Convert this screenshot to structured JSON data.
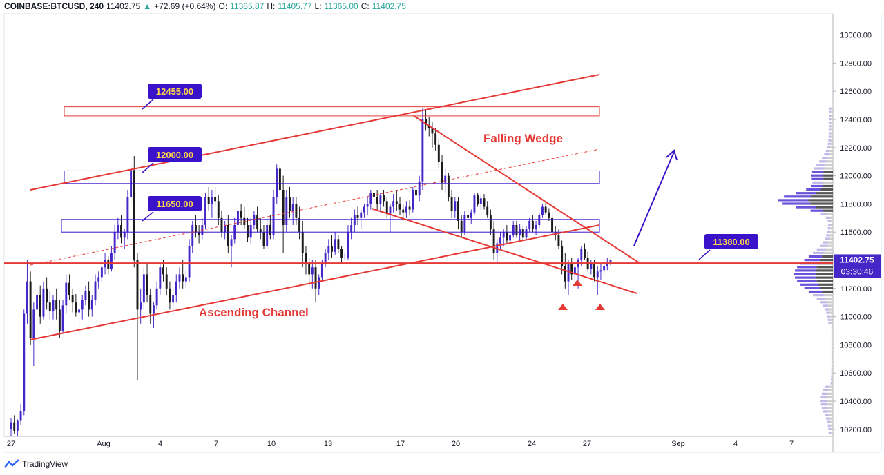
{
  "header": {
    "symbol": "COINBASE:BTCUSD, 240",
    "last": "11402.75",
    "arrow": "▲",
    "change": "+72.69 (+0.64%)",
    "o_label": "O:",
    "o_value": "11385.87",
    "h_label": "H:",
    "h_value": "11405.77",
    "l_label": "L:",
    "l_value": "11365.00",
    "c_label": "C:",
    "c_value": "11402.75"
  },
  "footer": {
    "brand": "TradingView",
    "logo_icon": "tradingview-logo-icon"
  },
  "colors": {
    "up": "#4527c8",
    "down": "#1b1b1b",
    "trend": "#e53935",
    "callout": "#3a12c9",
    "callout_text": "#ffd54a",
    "zone_red": "#e53935",
    "zone_blue": "#3a12c9"
  },
  "chart_data": {
    "type": "candlestick",
    "symbol": "COINBASE:BTCUSD",
    "timeframe": "240",
    "y_axis": {
      "range": [
        10150,
        13150
      ],
      "ticks": [
        "13000.00",
        "12800.00",
        "12600.00",
        "12400.00",
        "12200.00",
        "12000.00",
        "11800.00",
        "11600.00",
        "11400.00",
        "11200.00",
        "11000.00",
        "10800.00",
        "10600.00",
        "10400.00",
        "10200.00"
      ]
    },
    "x_axis": {
      "ticks": [
        "27",
        "Aug",
        "4",
        "7",
        "10",
        "13",
        "17",
        "20",
        "24",
        "27",
        "Sep",
        "4",
        "7"
      ]
    },
    "price_label": "11402.75",
    "countdown_label": "03:30:46",
    "ohlc_last": {
      "open": 11385.87,
      "high": 11405.77,
      "low": 11365.0,
      "close": 11402.75
    },
    "annotations": {
      "titles": [
        "Falling Wedge",
        "Ascending Channel"
      ],
      "callouts": [
        "12455.00",
        "12000.00",
        "11650.00",
        "11380.00"
      ],
      "support_level": 11380,
      "zones": [
        {
          "label": "12455.00",
          "low": 12425,
          "high": 12490
        },
        {
          "label": "12000.00",
          "low": 11945,
          "high": 12035
        },
        {
          "label": "11650.00",
          "low": 11600,
          "high": 11690
        }
      ]
    },
    "candles": [
      [
        10200,
        10280,
        10150,
        10250
      ],
      [
        10250,
        10300,
        10170,
        10190
      ],
      [
        10190,
        10270,
        10150,
        10260
      ],
      [
        10260,
        10380,
        10230,
        10330
      ],
      [
        10330,
        11050,
        10300,
        11020
      ],
      [
        11020,
        11400,
        10950,
        11250
      ],
      [
        11250,
        11320,
        10800,
        10850
      ],
      [
        10850,
        11100,
        10650,
        11050
      ],
      [
        11050,
        11200,
        10980,
        11150
      ],
      [
        11150,
        11220,
        10950,
        11000
      ],
      [
        11000,
        11250,
        10980,
        11200
      ],
      [
        11200,
        11280,
        11050,
        11100
      ],
      [
        11100,
        11180,
        10980,
        11040
      ],
      [
        11040,
        11150,
        10980,
        11120
      ],
      [
        11120,
        11200,
        10980,
        11050
      ],
      [
        11050,
        11120,
        10850,
        10900
      ],
      [
        10900,
        11120,
        10880,
        11080
      ],
      [
        11080,
        11300,
        11020,
        11240
      ],
      [
        11240,
        11300,
        11120,
        11150
      ],
      [
        11150,
        11200,
        11030,
        11100
      ],
      [
        11100,
        11160,
        11000,
        11030
      ],
      [
        11030,
        11100,
        10920,
        11050
      ],
      [
        11050,
        11150,
        10980,
        11120
      ],
      [
        11120,
        11220,
        11080,
        11180
      ],
      [
        11180,
        11250,
        11000,
        11050
      ],
      [
        11050,
        11150,
        11000,
        11120
      ],
      [
        11120,
        11300,
        11080,
        11250
      ],
      [
        11250,
        11320,
        11200,
        11280
      ],
      [
        11280,
        11400,
        11240,
        11350
      ],
      [
        11350,
        11450,
        11300,
        11400
      ],
      [
        11400,
        11430,
        11300,
        11340
      ],
      [
        11340,
        11500,
        11320,
        11450
      ],
      [
        11450,
        11650,
        11400,
        11600
      ],
      [
        11600,
        11700,
        11550,
        11650
      ],
      [
        11650,
        11720,
        11520,
        11560
      ],
      [
        11560,
        11620,
        11480,
        11600
      ],
      [
        11600,
        11900,
        11550,
        11850
      ],
      [
        11850,
        12080,
        11800,
        12040
      ],
      [
        12040,
        12140,
        11350,
        11400
      ],
      [
        11400,
        11450,
        10550,
        11050
      ],
      [
        11050,
        11200,
        10950,
        11100
      ],
      [
        11100,
        11350,
        11050,
        11300
      ],
      [
        11300,
        11380,
        11100,
        11150
      ],
      [
        11150,
        11200,
        10950,
        11020
      ],
      [
        11020,
        11100,
        10920,
        11080
      ],
      [
        11080,
        11250,
        11050,
        11200
      ],
      [
        11200,
        11380,
        11150,
        11350
      ],
      [
        11350,
        11400,
        11250,
        11300
      ],
      [
        11300,
        11350,
        11150,
        11200
      ],
      [
        11200,
        11250,
        11050,
        11100
      ],
      [
        11100,
        11200,
        11000,
        11150
      ],
      [
        11150,
        11300,
        11100,
        11250
      ],
      [
        11250,
        11350,
        11200,
        11300
      ],
      [
        11300,
        11400,
        11200,
        11250
      ],
      [
        11250,
        11330,
        11200,
        11280
      ],
      [
        11280,
        11550,
        11250,
        11500
      ],
      [
        11500,
        11680,
        11450,
        11650
      ],
      [
        11650,
        11720,
        11560,
        11600
      ],
      [
        11600,
        11650,
        11520,
        11580
      ],
      [
        11580,
        11700,
        11550,
        11650
      ],
      [
        11650,
        11880,
        11620,
        11850
      ],
      [
        11850,
        11920,
        11750,
        11800
      ],
      [
        11800,
        11900,
        11700,
        11850
      ],
      [
        11850,
        11920,
        11780,
        11820
      ],
      [
        11820,
        11860,
        11650,
        11700
      ],
      [
        11700,
        11750,
        11560,
        11600
      ],
      [
        11600,
        11680,
        11550,
        11650
      ],
      [
        11650,
        11720,
        11450,
        11500
      ],
      [
        11500,
        11580,
        11350,
        11550
      ],
      [
        11550,
        11700,
        11520,
        11650
      ],
      [
        11650,
        11780,
        11600,
        11750
      ],
      [
        11750,
        11800,
        11650,
        11700
      ],
      [
        11700,
        11780,
        11620,
        11650
      ],
      [
        11650,
        11700,
        11530,
        11560
      ],
      [
        11560,
        11700,
        11520,
        11650
      ],
      [
        11650,
        11750,
        11620,
        11720
      ],
      [
        11720,
        11780,
        11600,
        11620
      ],
      [
        11620,
        11700,
        11550,
        11600
      ],
      [
        11600,
        11650,
        11480,
        11500
      ],
      [
        11500,
        11700,
        11480,
        11650
      ],
      [
        11650,
        11720,
        11550,
        11580
      ],
      [
        11580,
        11900,
        11550,
        11850
      ],
      [
        11850,
        12080,
        11800,
        12050
      ],
      [
        12050,
        12070,
        11880,
        11900
      ],
      [
        11900,
        12000,
        11450,
        11650
      ],
      [
        11650,
        11900,
        11600,
        11850
      ],
      [
        11850,
        11920,
        11700,
        11750
      ],
      [
        11750,
        11850,
        11650,
        11800
      ],
      [
        11800,
        11850,
        11650,
        11700
      ],
      [
        11700,
        11780,
        11550,
        11600
      ],
      [
        11600,
        11680,
        11350,
        11450
      ],
      [
        11450,
        11500,
        11300,
        11380
      ],
      [
        11380,
        11420,
        11220,
        11300
      ],
      [
        11300,
        11400,
        11200,
        11350
      ],
      [
        11350,
        11400,
        11100,
        11200
      ],
      [
        11200,
        11300,
        11150,
        11280
      ],
      [
        11280,
        11400,
        11250,
        11380
      ],
      [
        11380,
        11480,
        11350,
        11450
      ],
      [
        11450,
        11550,
        11400,
        11500
      ],
      [
        11500,
        11580,
        11420,
        11460
      ],
      [
        11460,
        11600,
        11440,
        11550
      ],
      [
        11550,
        11580,
        11450,
        11480
      ],
      [
        11480,
        11500,
        11380,
        11420
      ],
      [
        11420,
        11450,
        11400,
        11420
      ],
      [
        11420,
        11650,
        11400,
        11600
      ],
      [
        11600,
        11700,
        11550,
        11650
      ],
      [
        11650,
        11760,
        11600,
        11720
      ],
      [
        11720,
        11780,
        11650,
        11700
      ],
      [
        11700,
        11760,
        11620,
        11740
      ],
      [
        11740,
        11800,
        11700,
        11780
      ],
      [
        11780,
        11850,
        11720,
        11800
      ],
      [
        11800,
        11900,
        11760,
        11880
      ],
      [
        11880,
        11920,
        11800,
        11850
      ],
      [
        11850,
        11900,
        11760,
        11800
      ],
      [
        11800,
        11880,
        11740,
        11860
      ],
      [
        11860,
        11900,
        11780,
        11820
      ],
      [
        11820,
        11850,
        11700,
        11730
      ],
      [
        11730,
        11800,
        11600,
        11780
      ],
      [
        11780,
        11870,
        11740,
        11820
      ],
      [
        11820,
        11900,
        11750,
        11800
      ],
      [
        11800,
        11850,
        11720,
        11760
      ],
      [
        11760,
        11800,
        11680,
        11740
      ],
      [
        11740,
        11820,
        11700,
        11780
      ],
      [
        11780,
        11830,
        11720,
        11760
      ],
      [
        11760,
        11920,
        11740,
        11900
      ],
      [
        11900,
        11960,
        11820,
        11860
      ],
      [
        11860,
        12000,
        11820,
        11960
      ],
      [
        11960,
        12480,
        11900,
        12400
      ],
      [
        12400,
        12470,
        12320,
        12360
      ],
      [
        12360,
        12420,
        12280,
        12340
      ],
      [
        12340,
        12380,
        12200,
        12300
      ],
      [
        12300,
        12340,
        12180,
        12220
      ],
      [
        12220,
        12260,
        12050,
        12100
      ],
      [
        12100,
        12150,
        11900,
        11950
      ],
      [
        11950,
        12050,
        11880,
        12000
      ],
      [
        12000,
        12020,
        11820,
        11850
      ],
      [
        11850,
        11900,
        11700,
        11750
      ],
      [
        11750,
        11850,
        11700,
        11820
      ],
      [
        11820,
        11850,
        11620,
        11680
      ],
      [
        11680,
        11720,
        11560,
        11600
      ],
      [
        11600,
        11750,
        11580,
        11720
      ],
      [
        11720,
        11780,
        11650,
        11700
      ],
      [
        11700,
        11760,
        11660,
        11740
      ],
      [
        11740,
        11880,
        11720,
        11860
      ],
      [
        11860,
        11880,
        11780,
        11800
      ],
      [
        11800,
        11860,
        11760,
        11840
      ],
      [
        11840,
        11870,
        11760,
        11780
      ],
      [
        11780,
        11820,
        11700,
        11720
      ],
      [
        11720,
        11760,
        11580,
        11620
      ],
      [
        11620,
        11680,
        11400,
        11450
      ],
      [
        11450,
        11550,
        11380,
        11520
      ],
      [
        11520,
        11600,
        11480,
        11560
      ],
      [
        11560,
        11620,
        11500,
        11600
      ],
      [
        11600,
        11650,
        11520,
        11540
      ],
      [
        11540,
        11600,
        11500,
        11580
      ],
      [
        11580,
        11680,
        11560,
        11650
      ],
      [
        11650,
        11680,
        11560,
        11580
      ],
      [
        11580,
        11660,
        11540,
        11620
      ],
      [
        11620,
        11640,
        11540,
        11560
      ],
      [
        11560,
        11640,
        11540,
        11620
      ],
      [
        11620,
        11700,
        11600,
        11680
      ],
      [
        11680,
        11720,
        11600,
        11620
      ],
      [
        11620,
        11680,
        11580,
        11650
      ],
      [
        11650,
        11740,
        11630,
        11720
      ],
      [
        11720,
        11800,
        11700,
        11780
      ],
      [
        11780,
        11820,
        11720,
        11740
      ],
      [
        11740,
        11770,
        11680,
        11700
      ],
      [
        11700,
        11740,
        11580,
        11600
      ],
      [
        11600,
        11640,
        11540,
        11580
      ],
      [
        11580,
        11620,
        11480,
        11500
      ],
      [
        11500,
        11540,
        11300,
        11360
      ],
      [
        11360,
        11450,
        11200,
        11250
      ],
      [
        11250,
        11400,
        11150,
        11380
      ],
      [
        11380,
        11420,
        11260,
        11300
      ],
      [
        11300,
        11380,
        11250,
        11350
      ],
      [
        11350,
        11420,
        11200,
        11400
      ],
      [
        11400,
        11500,
        11360,
        11480
      ],
      [
        11480,
        11520,
        11400,
        11420
      ],
      [
        11420,
        11460,
        11320,
        11340
      ],
      [
        11340,
        11400,
        11300,
        11380
      ],
      [
        11380,
        11400,
        11250,
        11280
      ],
      [
        11280,
        11360,
        11150,
        11320
      ],
      [
        11320,
        11380,
        11260,
        11330
      ],
      [
        11330,
        11400,
        11300,
        11360
      ],
      [
        11360,
        11420,
        11330,
        11385
      ],
      [
        11385,
        11406,
        11365,
        11403
      ]
    ]
  }
}
